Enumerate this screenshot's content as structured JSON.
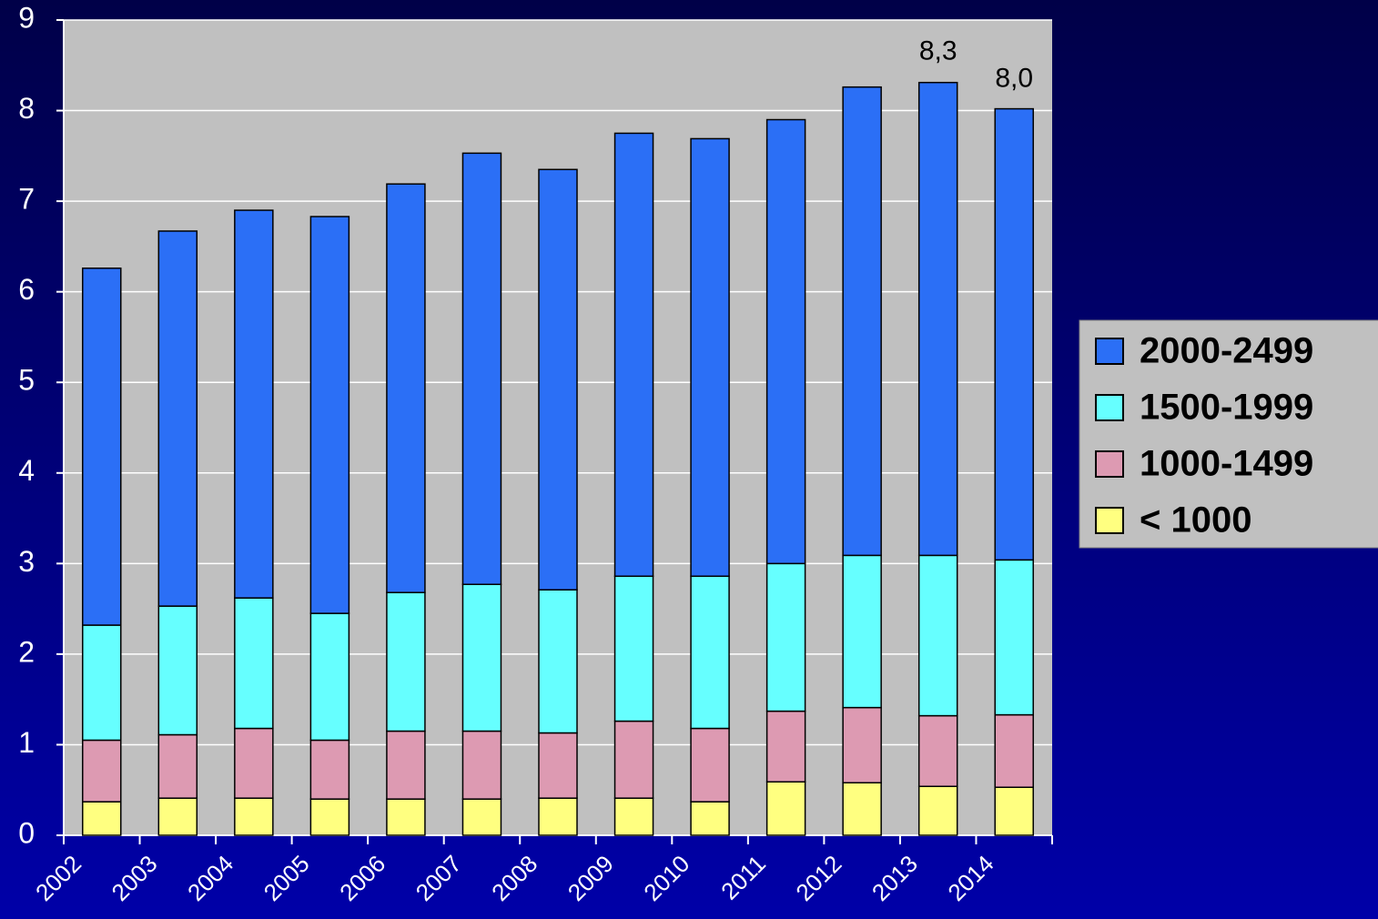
{
  "chart_data": {
    "type": "stacked_bar",
    "categories": [
      "2002",
      "2003",
      "2004",
      "2005",
      "2006",
      "2007",
      "2008",
      "2009",
      "2010",
      "2011",
      "2012",
      "2013",
      "2014"
    ],
    "series": [
      {
        "name": "< 1000",
        "color": "#ffff80",
        "values": [
          0.37,
          0.41,
          0.41,
          0.4,
          0.4,
          0.4,
          0.41,
          0.41,
          0.37,
          0.59,
          0.58,
          0.54,
          0.53
        ]
      },
      {
        "name": "1000-1499",
        "color": "#dd9ab2",
        "values": [
          0.68,
          0.7,
          0.77,
          0.65,
          0.75,
          0.75,
          0.72,
          0.85,
          0.81,
          0.78,
          0.83,
          0.78,
          0.8
        ]
      },
      {
        "name": "1500-1999",
        "color": "#66ffff",
        "values": [
          1.27,
          1.42,
          1.44,
          1.4,
          1.53,
          1.62,
          1.58,
          1.6,
          1.68,
          1.63,
          1.68,
          1.77,
          1.71
        ]
      },
      {
        "name": "2000-2499",
        "color": "#2b6ff6",
        "values": [
          3.94,
          4.14,
          4.28,
          4.38,
          4.51,
          4.76,
          4.64,
          4.89,
          4.83,
          4.9,
          5.17,
          5.22,
          4.98
        ]
      }
    ],
    "totals": [
      null,
      null,
      null,
      null,
      null,
      null,
      null,
      null,
      null,
      null,
      null,
      8.3,
      8.0
    ],
    "total_labels": [
      null,
      null,
      null,
      null,
      null,
      null,
      null,
      null,
      null,
      null,
      null,
      "8,3",
      "8,0"
    ],
    "ylim": [
      0,
      9
    ],
    "yticks": [
      0,
      1,
      2,
      3,
      4,
      5,
      6,
      7,
      8,
      9
    ],
    "grid": true,
    "legend": "right"
  }
}
